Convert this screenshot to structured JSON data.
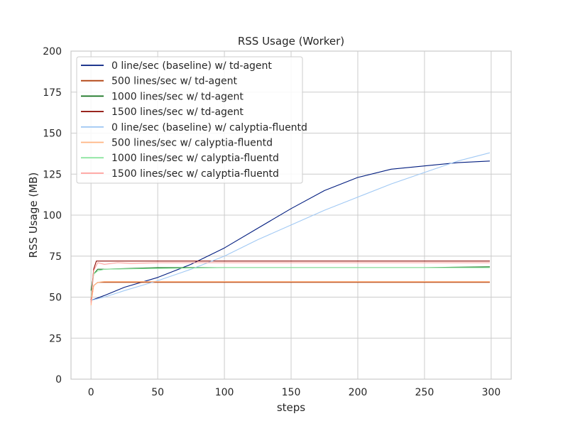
{
  "chart_data": {
    "type": "line",
    "title": "RSS Usage (Worker)",
    "xlabel": "steps",
    "ylabel": "RSS Usage (MB)",
    "xlim": [
      -15,
      315
    ],
    "ylim": [
      0,
      200
    ],
    "xticks": [
      0,
      50,
      100,
      150,
      200,
      250,
      300
    ],
    "yticks": [
      0,
      25,
      50,
      75,
      100,
      125,
      150,
      175,
      200
    ],
    "grid": true,
    "legend_position": "upper-left",
    "series": [
      {
        "name": "0 line/sec (baseline) w/ td-agent",
        "color": "#001c7f",
        "x": [
          0,
          10,
          25,
          50,
          75,
          100,
          125,
          150,
          175,
          200,
          225,
          250,
          275,
          299
        ],
        "y": [
          48,
          51,
          56,
          62,
          70,
          80,
          92,
          104,
          115,
          123,
          128,
          130,
          132,
          133
        ]
      },
      {
        "name": "500 lines/sec w/ td-agent",
        "color": "#b1400d",
        "x": [
          0,
          2,
          5,
          10,
          50,
          100,
          150,
          200,
          250,
          299
        ],
        "y": [
          47,
          57,
          59,
          59,
          59,
          59,
          59,
          59,
          59,
          59
        ]
      },
      {
        "name": "1000 lines/sec w/ td-agent",
        "color": "#12711c",
        "x": [
          0,
          2,
          5,
          10,
          50,
          100,
          150,
          200,
          250,
          299
        ],
        "y": [
          54,
          64,
          67,
          67,
          68,
          68,
          68,
          68,
          68,
          68.5
        ]
      },
      {
        "name": "1500 lines/sec w/ td-agent",
        "color": "#8c0800",
        "x": [
          0,
          2,
          4,
          10,
          50,
          100,
          150,
          200,
          250,
          299
        ],
        "y": [
          48,
          67,
          72,
          72,
          72,
          72,
          72,
          72,
          72,
          72
        ]
      },
      {
        "name": "0 line/sec (baseline) w/ calyptia-fluentd",
        "color": "#a1c9f4",
        "x": [
          0,
          10,
          25,
          50,
          75,
          100,
          125,
          150,
          175,
          200,
          225,
          250,
          275,
          299
        ],
        "y": [
          48,
          50,
          54,
          60,
          67,
          75,
          85,
          94,
          103,
          111,
          119,
          126,
          133,
          138
        ]
      },
      {
        "name": "500 lines/sec w/ calyptia-fluentd",
        "color": "#ffb482",
        "x": [
          0,
          2,
          5,
          10,
          50,
          100,
          150,
          200,
          250,
          299
        ],
        "y": [
          45,
          57,
          59,
          59.5,
          59.5,
          59.5,
          59.5,
          59.5,
          59.5,
          59.5
        ]
      },
      {
        "name": "1000 lines/sec w/ calyptia-fluentd",
        "color": "#8de5a1",
        "x": [
          0,
          2,
          5,
          10,
          50,
          100,
          150,
          200,
          250,
          299
        ],
        "y": [
          50,
          64,
          66,
          67,
          67.5,
          68,
          68,
          68,
          68,
          68
        ]
      },
      {
        "name": "1500 lines/sec w/ calyptia-fluentd",
        "color": "#ff9f9b",
        "x": [
          0,
          2,
          5,
          10,
          20,
          30,
          50,
          100,
          150,
          200,
          250,
          299
        ],
        "y": [
          46,
          66,
          71,
          70,
          71,
          70.5,
          71,
          71,
          71,
          71,
          71,
          71
        ]
      }
    ]
  }
}
